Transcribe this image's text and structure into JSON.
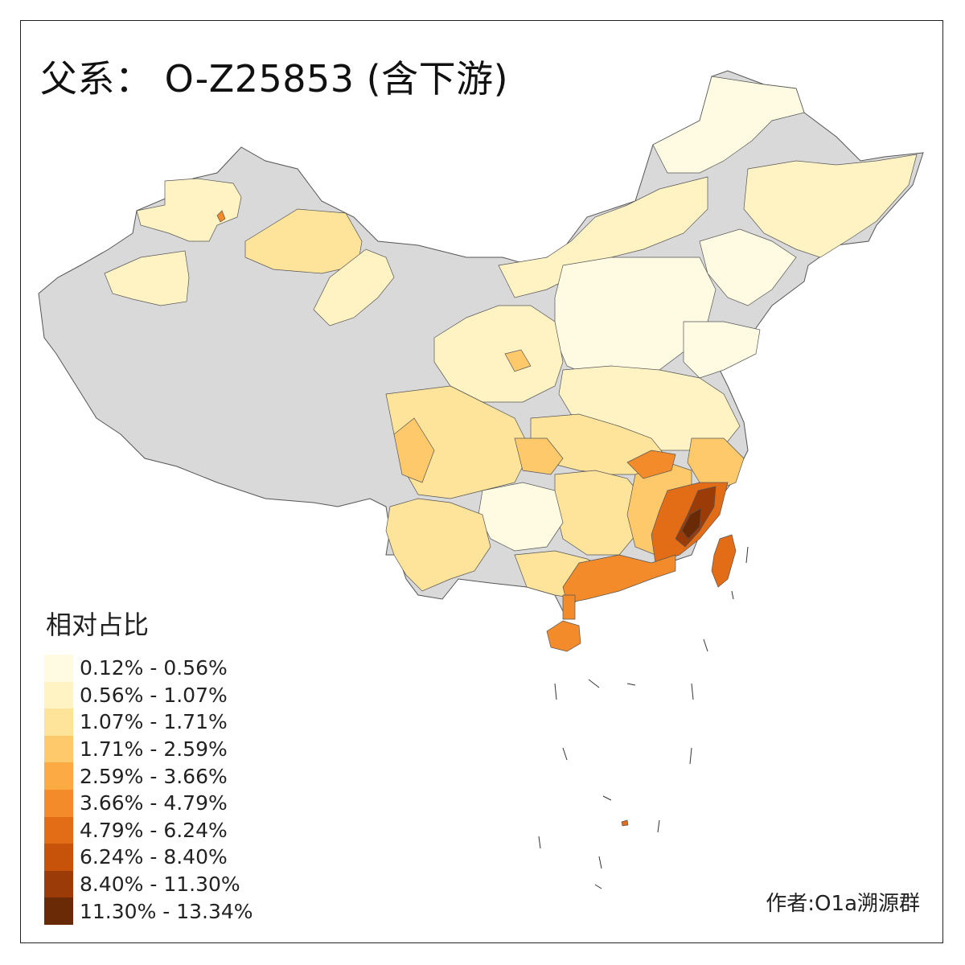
{
  "title": "父系： O-Z25853 (含下游)",
  "legend": {
    "title": "相对占比",
    "classes": [
      {
        "label": "0.12% - 0.56%",
        "color": "#fffbe3"
      },
      {
        "label": "0.56% - 1.07%",
        "color": "#fff3c4"
      },
      {
        "label": "1.07% - 1.71%",
        "color": "#fee49a"
      },
      {
        "label": "1.71% - 2.59%",
        "color": "#fec96a"
      },
      {
        "label": "2.59% - 3.66%",
        "color": "#fcab44"
      },
      {
        "label": "3.66% - 4.79%",
        "color": "#f48b2a"
      },
      {
        "label": "4.79% - 6.24%",
        "color": "#e36d16"
      },
      {
        "label": "6.24% - 8.40%",
        "color": "#c7520a"
      },
      {
        "label": "8.40% - 11.30%",
        "color": "#9b3b07"
      },
      {
        "label": "11.30% - 13.34%",
        "color": "#6b2a06"
      }
    ]
  },
  "colors": {
    "no_data": "#d9d9d9",
    "border": "#555555"
  },
  "credit": "作者:O1a溯源群"
}
